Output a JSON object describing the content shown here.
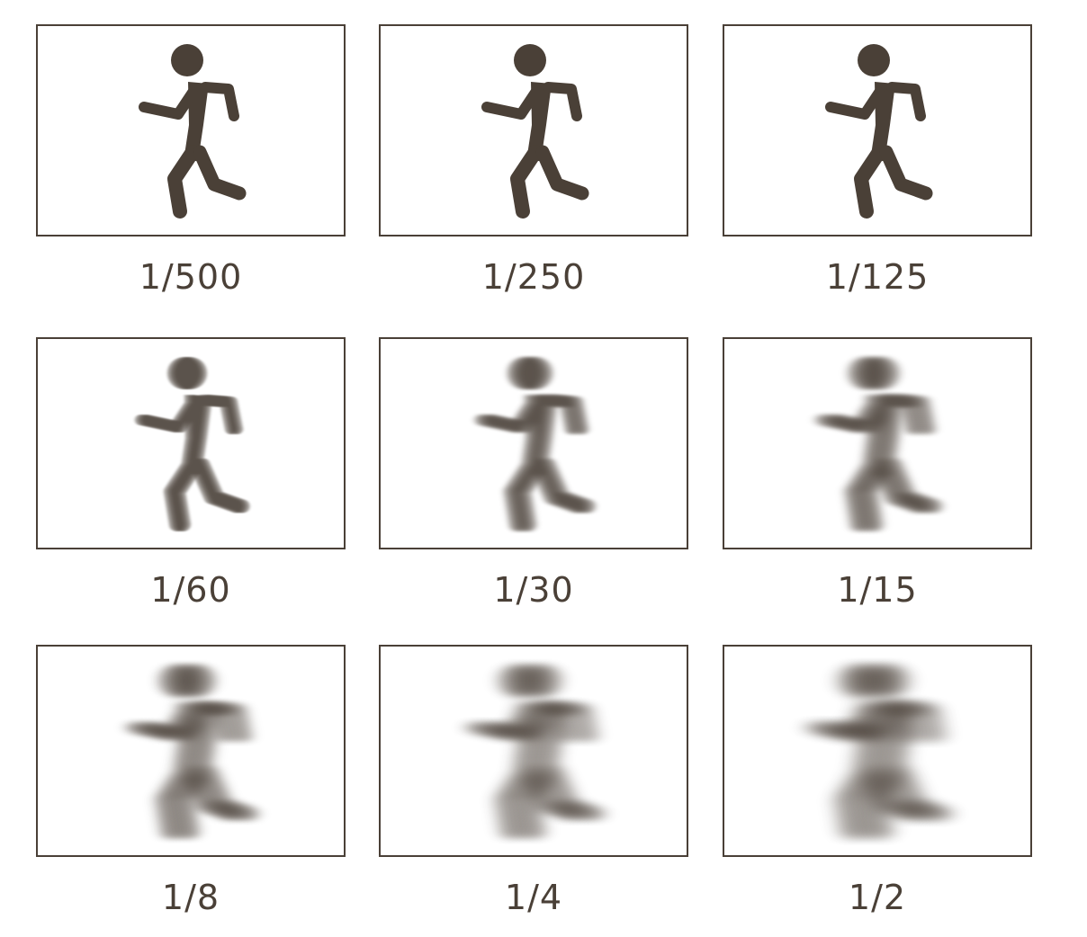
{
  "figure_color": "#4a4037",
  "figure_icon": "running-person-icon",
  "panels": [
    {
      "shutter": "1/500",
      "blur_level": 0
    },
    {
      "shutter": "1/250",
      "blur_level": 0
    },
    {
      "shutter": "1/125",
      "blur_level": 0
    },
    {
      "shutter": "1/60",
      "blur_level": 1
    },
    {
      "shutter": "1/30",
      "blur_level": 2
    },
    {
      "shutter": "1/15",
      "blur_level": 3
    },
    {
      "shutter": "1/8",
      "blur_level": 4
    },
    {
      "shutter": "1/4",
      "blur_level": 5
    },
    {
      "shutter": "1/2",
      "blur_level": 6
    }
  ]
}
